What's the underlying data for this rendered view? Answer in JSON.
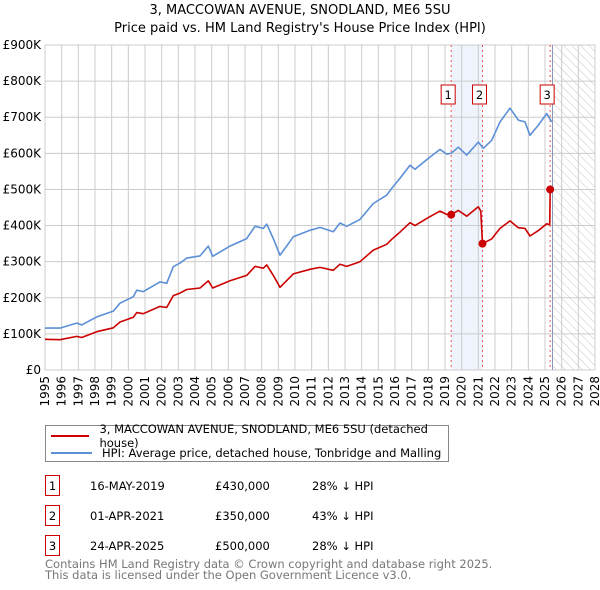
{
  "title": "3, MACCOWAN AVENUE, SNODLAND, ME6 5SU",
  "subtitle": "Price paid vs. HM Land Registry's House Price Index (HPI)",
  "chart_data": {
    "type": "line",
    "xlim": [
      1995,
      2028
    ],
    "ylim": [
      0,
      900000
    ],
    "xticks": [
      "1995",
      "1996",
      "1997",
      "1998",
      "1999",
      "2000",
      "2001",
      "2002",
      "2003",
      "2004",
      "2005",
      "2006",
      "2007",
      "2008",
      "2009",
      "2010",
      "2011",
      "2012",
      "2013",
      "2014",
      "2015",
      "2016",
      "2017",
      "2018",
      "2019",
      "2020",
      "2021",
      "2022",
      "2023",
      "2024",
      "2025",
      "2026",
      "2027",
      "2028"
    ],
    "yticks": [
      {
        "v": 0,
        "label": "£0"
      },
      {
        "v": 100000,
        "label": "£100K"
      },
      {
        "v": 200000,
        "label": "£200K"
      },
      {
        "v": 300000,
        "label": "£300K"
      },
      {
        "v": 400000,
        "label": "£400K"
      },
      {
        "v": 500000,
        "label": "£500K"
      },
      {
        "v": 600000,
        "label": "£600K"
      },
      {
        "v": 700000,
        "label": "£700K"
      },
      {
        "v": 800000,
        "label": "£800K"
      },
      {
        "v": 900000,
        "label": "£900K"
      }
    ],
    "grid": true,
    "series": [
      {
        "name": "3, MACCOWAN AVENUE, SNODLAND, ME6 5SU (detached house)",
        "color": "#cc0000",
        "points": [
          [
            1995,
            85000
          ],
          [
            1995.9,
            84000
          ],
          [
            1996.9,
            93000
          ],
          [
            1997.2,
            90000
          ],
          [
            1998.1,
            106000
          ],
          [
            1999.1,
            117000
          ],
          [
            1999.5,
            133000
          ],
          [
            2000.3,
            146000
          ],
          [
            2000.5,
            159000
          ],
          [
            2000.9,
            156000
          ],
          [
            2001.9,
            176000
          ],
          [
            2002.3,
            173000
          ],
          [
            2002.7,
            206000
          ],
          [
            2003.1,
            213000
          ],
          [
            2003.5,
            223000
          ],
          [
            2004.3,
            227000
          ],
          [
            2004.8,
            247000
          ],
          [
            2005.06,
            227000
          ],
          [
            2006.1,
            247000
          ],
          [
            2007.1,
            262000
          ],
          [
            2007.6,
            287000
          ],
          [
            2008.1,
            282000
          ],
          [
            2008.3,
            291000
          ],
          [
            2008.7,
            262000
          ],
          [
            2009.1,
            229000
          ],
          [
            2009.9,
            266000
          ],
          [
            2010.9,
            279000
          ],
          [
            2011.5,
            284000
          ],
          [
            2012.3,
            276000
          ],
          [
            2012.7,
            293000
          ],
          [
            2013.1,
            287000
          ],
          [
            2013.9,
            300000
          ],
          [
            2014.7,
            332000
          ],
          [
            2015.5,
            348000
          ],
          [
            2015.8,
            362000
          ],
          [
            2016.3,
            382000
          ],
          [
            2016.9,
            408000
          ],
          [
            2017.2,
            400000
          ],
          [
            2018.0,
            422000
          ],
          [
            2018.7,
            440000
          ],
          [
            2019.1,
            431000
          ],
          [
            2019.37,
            430000
          ],
          [
            2019.8,
            442000
          ],
          [
            2020.3,
            426000
          ],
          [
            2021.0,
            452000
          ],
          [
            2021.15,
            440000
          ],
          [
            2021.25,
            350000
          ],
          [
            2021.8,
            363000
          ],
          [
            2022.3,
            392000
          ],
          [
            2022.9,
            413000
          ],
          [
            2023.4,
            394000
          ],
          [
            2023.8,
            392000
          ],
          [
            2024.1,
            371000
          ],
          [
            2024.6,
            386000
          ],
          [
            2025.1,
            405000
          ],
          [
            2025.28,
            402000
          ],
          [
            2025.31,
            500000
          ],
          [
            2025.4,
            498000
          ]
        ]
      },
      {
        "name": "HPI: Average price, detached house, Tonbridge and Malling",
        "color": "#5b8fd6",
        "points": [
          [
            1995,
            116000
          ],
          [
            1995.9,
            116000
          ],
          [
            1996.9,
            130000
          ],
          [
            1997.2,
            125000
          ],
          [
            1998.1,
            147000
          ],
          [
            1999.1,
            163000
          ],
          [
            1999.5,
            185000
          ],
          [
            2000.3,
            203000
          ],
          [
            2000.5,
            221000
          ],
          [
            2000.9,
            217000
          ],
          [
            2001.9,
            244000
          ],
          [
            2002.3,
            240000
          ],
          [
            2002.7,
            286000
          ],
          [
            2003.1,
            296000
          ],
          [
            2003.5,
            310000
          ],
          [
            2004.3,
            316000
          ],
          [
            2004.8,
            343000
          ],
          [
            2005.06,
            315000
          ],
          [
            2006.1,
            343000
          ],
          [
            2007.1,
            364000
          ],
          [
            2007.6,
            398000
          ],
          [
            2008.1,
            392000
          ],
          [
            2008.3,
            404000
          ],
          [
            2008.7,
            364000
          ],
          [
            2009.1,
            318000
          ],
          [
            2009.9,
            369000
          ],
          [
            2010.9,
            387000
          ],
          [
            2011.5,
            395000
          ],
          [
            2012.3,
            383000
          ],
          [
            2012.7,
            407000
          ],
          [
            2013.1,
            398000
          ],
          [
            2013.9,
            417000
          ],
          [
            2014.7,
            461000
          ],
          [
            2015.5,
            484000
          ],
          [
            2015.8,
            503000
          ],
          [
            2016.3,
            531000
          ],
          [
            2016.9,
            567000
          ],
          [
            2017.2,
            556000
          ],
          [
            2018.0,
            586000
          ],
          [
            2018.7,
            611000
          ],
          [
            2019.1,
            598000
          ],
          [
            2019.37,
            600000
          ],
          [
            2019.8,
            617000
          ],
          [
            2020.3,
            595000
          ],
          [
            2021.0,
            631000
          ],
          [
            2021.3,
            614000
          ],
          [
            2021.8,
            636000
          ],
          [
            2022.3,
            687000
          ],
          [
            2022.9,
            725000
          ],
          [
            2023.4,
            692000
          ],
          [
            2023.8,
            687000
          ],
          [
            2024.1,
            650000
          ],
          [
            2024.6,
            678000
          ],
          [
            2025.1,
            710000
          ],
          [
            2025.4,
            687000
          ]
        ]
      }
    ],
    "sales": [
      {
        "id": "1",
        "x": 2019.37,
        "y": 430000
      },
      {
        "id": "2",
        "x": 2021.25,
        "y": 350000
      },
      {
        "id": "3",
        "x": 2025.31,
        "y": 500000
      }
    ],
    "shaded_range": [
      2019.37,
      2021.25
    ],
    "forecast_from": 2025.45,
    "legend_position": "below"
  },
  "legend": [
    {
      "label": "3, MACCOWAN AVENUE, SNODLAND, ME6 5SU (detached house)",
      "color": "#cc0000"
    },
    {
      "label": "HPI: Average price, detached house, Tonbridge and Malling",
      "color": "#5b8fd6"
    }
  ],
  "sales_table": [
    {
      "id": "1",
      "date": "16-MAY-2019",
      "price": "£430,000",
      "delta": "28% ↓ HPI"
    },
    {
      "id": "2",
      "date": "01-APR-2021",
      "price": "£350,000",
      "delta": "43% ↓ HPI"
    },
    {
      "id": "3",
      "date": "24-APR-2025",
      "price": "£500,000",
      "delta": "28% ↓ HPI"
    }
  ],
  "footer": [
    "Contains HM Land Registry data © Crown copyright and database right 2025.",
    "This data is licensed under the Open Government Licence v3.0."
  ]
}
